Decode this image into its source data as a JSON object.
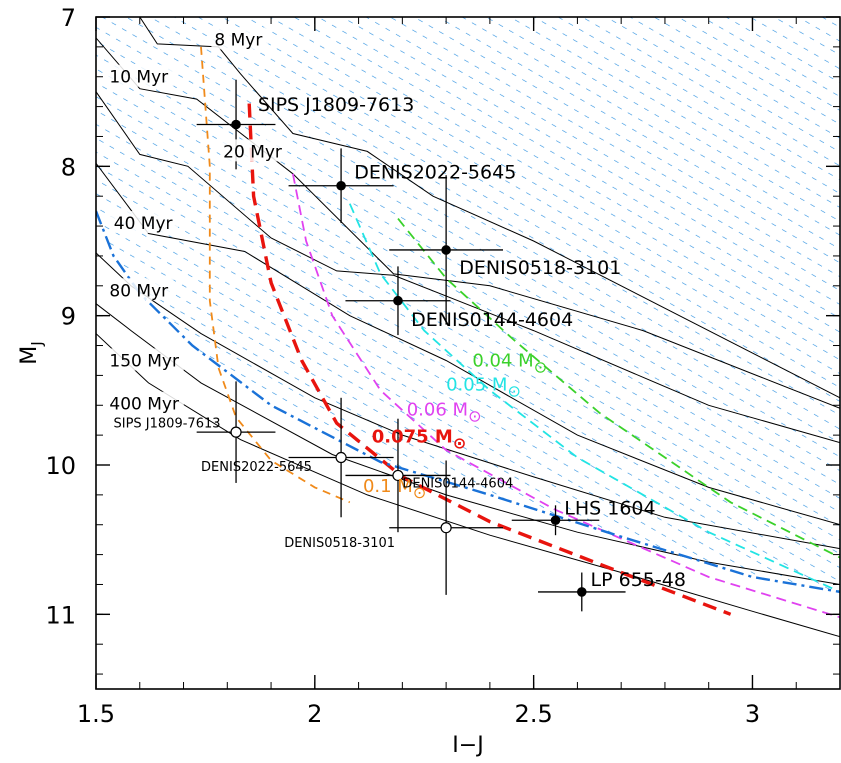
{
  "chart_data": {
    "type": "scatter",
    "xlabel": "I−J",
    "ylabel_main": "M",
    "ylabel_sub": "J",
    "xlim": [
      1.5,
      3.2
    ],
    "ylim": [
      11.5,
      7.0
    ],
    "y_inverted": true,
    "x_ticks": [
      1.5,
      2,
      2.5,
      3
    ],
    "x_tick_labels": [
      "1.5",
      "2",
      "2.5",
      "3"
    ],
    "y_ticks": [
      7,
      8,
      9,
      10,
      11
    ],
    "y_tick_labels": [
      "7",
      "8",
      "9",
      "10",
      "11"
    ],
    "shaded_region": {
      "description": "hatched region above 0.075 Msun track",
      "color": "#2a8fe0"
    },
    "isochrones": [
      {
        "name": "8 Myr",
        "points": [
          [
            1.6,
            7.0
          ],
          [
            1.64,
            7.18
          ],
          [
            1.78,
            7.2
          ],
          [
            1.83,
            7.38
          ],
          [
            1.95,
            7.78
          ],
          [
            2.12,
            7.9
          ],
          [
            2.27,
            8.2
          ],
          [
            2.5,
            8.5
          ],
          [
            3.2,
            9.55
          ]
        ]
      },
      {
        "name": "10 Myr",
        "points": [
          [
            1.5,
            7.0
          ],
          [
            1.5,
            7.14
          ],
          [
            1.6,
            7.48
          ],
          [
            1.73,
            7.55
          ],
          [
            1.95,
            8.05
          ],
          [
            2.18,
            8.72
          ],
          [
            2.4,
            8.8
          ],
          [
            2.75,
            9.1
          ],
          [
            3.2,
            9.62
          ]
        ]
      },
      {
        "name": "20 Myr",
        "points": [
          [
            1.5,
            7.5
          ],
          [
            1.6,
            7.92
          ],
          [
            1.71,
            8.0
          ],
          [
            1.9,
            8.48
          ],
          [
            2.05,
            8.7
          ],
          [
            2.18,
            8.73
          ],
          [
            2.5,
            9.1
          ],
          [
            2.9,
            9.6
          ],
          [
            3.2,
            9.85
          ]
        ]
      },
      {
        "name": "40 Myr",
        "points": [
          [
            1.5,
            7.98
          ],
          [
            1.62,
            8.45
          ],
          [
            1.84,
            8.57
          ],
          [
            2.08,
            9.0
          ],
          [
            2.3,
            9.3
          ],
          [
            2.6,
            9.8
          ],
          [
            2.9,
            10.15
          ],
          [
            3.2,
            10.4
          ]
        ]
      },
      {
        "name": "80 Myr",
        "points": [
          [
            1.5,
            8.58
          ],
          [
            1.58,
            8.8
          ],
          [
            1.74,
            9.12
          ],
          [
            2.0,
            9.55
          ],
          [
            2.2,
            9.8
          ],
          [
            2.5,
            10.08
          ],
          [
            2.8,
            10.35
          ],
          [
            3.2,
            10.56
          ]
        ]
      },
      {
        "name": "150 Myr",
        "points": [
          [
            1.5,
            8.92
          ],
          [
            1.58,
            9.1
          ],
          [
            1.74,
            9.45
          ],
          [
            2.04,
            9.93
          ],
          [
            2.3,
            10.2
          ],
          [
            2.6,
            10.45
          ],
          [
            2.9,
            10.65
          ],
          [
            3.2,
            10.8
          ]
        ]
      },
      {
        "name": "400 Myr",
        "points": [
          [
            1.5,
            9.12
          ],
          [
            1.62,
            9.45
          ],
          [
            1.83,
            9.83
          ],
          [
            2.12,
            10.2
          ],
          [
            2.4,
            10.47
          ],
          [
            2.7,
            10.72
          ],
          [
            3.0,
            10.98
          ],
          [
            3.2,
            11.15
          ]
        ]
      }
    ],
    "isochrone_label_texts": [
      "8 Myr",
      "10 Myr",
      "20 Myr",
      "40 Myr",
      "80 Myr",
      "150 Myr",
      "400 Myr"
    ],
    "mass_tracks": [
      {
        "name": "0.1 Mo",
        "label": "0.1 M",
        "color": "#f08a1a",
        "width": 1.8,
        "dash": "8,6",
        "label_anchor": [
          2.11,
          10.18
        ],
        "points": [
          [
            1.74,
            7.2
          ],
          [
            1.76,
            8.0
          ],
          [
            1.76,
            8.9
          ],
          [
            1.78,
            9.35
          ],
          [
            1.82,
            9.68
          ],
          [
            1.9,
            9.97
          ],
          [
            2.0,
            10.15
          ],
          [
            2.08,
            10.25
          ]
        ]
      },
      {
        "name": "0.075 Mo",
        "label": "0.075 M",
        "color": "#e8140e",
        "width": 3.4,
        "dash": "14,8",
        "label_anchor": [
          2.13,
          9.85
        ],
        "points": [
          [
            1.85,
            7.58
          ],
          [
            1.86,
            8.2
          ],
          [
            1.9,
            8.78
          ],
          [
            1.97,
            9.3
          ],
          [
            2.05,
            9.72
          ],
          [
            2.2,
            10.08
          ],
          [
            2.4,
            10.38
          ],
          [
            2.7,
            10.72
          ],
          [
            2.95,
            11.0
          ]
        ]
      },
      {
        "name": "0.06 Mo",
        "label": "0.06 M",
        "color": "#e042f0",
        "width": 1.8,
        "dash": "10,6",
        "label_anchor": [
          2.21,
          9.67
        ],
        "points": [
          [
            1.95,
            8.05
          ],
          [
            1.98,
            8.5
          ],
          [
            2.04,
            9.0
          ],
          [
            2.15,
            9.5
          ],
          [
            2.3,
            9.9
          ],
          [
            2.55,
            10.3
          ],
          [
            2.9,
            10.75
          ],
          [
            3.2,
            11.02
          ]
        ]
      },
      {
        "name": "0.05 Mo",
        "label": "0.05 M",
        "color": "#22e4e4",
        "width": 1.8,
        "dash": "10,6",
        "label_anchor": [
          2.3,
          9.5
        ],
        "points": [
          [
            2.08,
            8.25
          ],
          [
            2.15,
            8.72
          ],
          [
            2.25,
            9.1
          ],
          [
            2.4,
            9.5
          ],
          [
            2.6,
            9.95
          ],
          [
            2.9,
            10.45
          ],
          [
            3.2,
            10.85
          ]
        ]
      },
      {
        "name": "0.04 Mo",
        "label": "0.04 M",
        "color": "#3ad12a",
        "width": 1.8,
        "dash": "10,6",
        "label_anchor": [
          2.36,
          9.34
        ],
        "points": [
          [
            2.19,
            8.35
          ],
          [
            2.3,
            8.75
          ],
          [
            2.45,
            9.15
          ],
          [
            2.65,
            9.65
          ],
          [
            2.95,
            10.25
          ],
          [
            3.2,
            10.62
          ]
        ]
      }
    ],
    "mass_unit_symbol": "⊙",
    "deuterium_line": {
      "color": "#1a72d8",
      "points": [
        [
          1.5,
          8.3
        ],
        [
          1.54,
          8.6
        ],
        [
          1.6,
          8.85
        ],
        [
          1.72,
          9.2
        ],
        [
          1.9,
          9.6
        ],
        [
          2.15,
          9.98
        ],
        [
          2.4,
          10.2
        ],
        [
          2.7,
          10.48
        ],
        [
          3.0,
          10.75
        ],
        [
          3.2,
          10.85
        ]
      ]
    },
    "stars_filled": [
      {
        "name": "SIPS J1809-7613",
        "x": 1.82,
        "y": 7.72,
        "xerr": 0.09,
        "yerr": 0.3,
        "label_anchor": [
          1.87,
          7.63
        ],
        "label_size": "large"
      },
      {
        "name": "DENIS2022-5645",
        "x": 2.06,
        "y": 8.13,
        "xerr": 0.12,
        "yerr": 0.25,
        "label_anchor": [
          2.09,
          8.08
        ],
        "label_size": "large"
      },
      {
        "name": "DENIS0518-3101",
        "x": 2.3,
        "y": 8.56,
        "xerr": 0.13,
        "yerr": 0.5,
        "label_anchor": [
          2.33,
          8.72
        ],
        "label_size": "large"
      },
      {
        "name": "DENIS0144-4604",
        "x": 2.19,
        "y": 8.9,
        "xerr": 0.12,
        "yerr": 0.23,
        "label_anchor": [
          2.22,
          9.07
        ],
        "label_size": "large"
      },
      {
        "name": "LHS 1604",
        "x": 2.55,
        "y": 10.37,
        "xerr": 0.1,
        "yerr": 0.1,
        "label_anchor": [
          2.57,
          10.33
        ],
        "label_size": "large"
      },
      {
        "name": "LP 655-48",
        "x": 2.61,
        "y": 10.85,
        "xerr": 0.1,
        "yerr": 0.13,
        "label_anchor": [
          2.63,
          10.81
        ],
        "label_size": "large"
      }
    ],
    "stars_open": [
      {
        "name": "SIPS J1809-7613",
        "x": 1.82,
        "y": 9.78,
        "xerr": 0.09,
        "yerr": 0.34,
        "label_anchor": [
          1.54,
          9.75
        ],
        "label_size": "small"
      },
      {
        "name": "DENIS2022-5645",
        "x": 2.06,
        "y": 9.95,
        "xerr": 0.12,
        "yerr": 0.4,
        "label_anchor": [
          1.74,
          10.04
        ],
        "label_size": "small"
      },
      {
        "name": "DENIS0144-4604",
        "x": 2.19,
        "y": 10.07,
        "xerr": 0.12,
        "yerr": 0.38,
        "label_anchor": [
          2.2,
          10.15
        ],
        "label_size": "small"
      },
      {
        "name": "DENIS0518-3101",
        "x": 2.3,
        "y": 10.42,
        "xerr": 0.13,
        "yerr": 0.45,
        "label_anchor": [
          1.93,
          10.55
        ],
        "label_size": "small"
      }
    ]
  }
}
